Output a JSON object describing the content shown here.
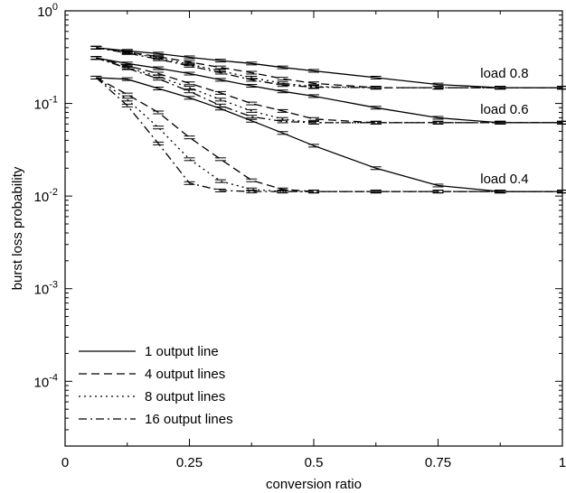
{
  "chart_data": {
    "type": "line",
    "xlabel": "conversion ratio",
    "ylabel": "burst loss probability",
    "xlim": [
      0,
      1
    ],
    "ylim": [
      2e-05,
      1
    ],
    "yscale": "log",
    "grid": false,
    "legend_position": "bottom-left",
    "x_ticks": [
      {
        "value": 0,
        "label": "0"
      },
      {
        "value": 0.25,
        "label": "0.25"
      },
      {
        "value": 0.5,
        "label": "0.5"
      },
      {
        "value": 0.75,
        "label": "0.75"
      },
      {
        "value": 1,
        "label": "1"
      }
    ],
    "y_ticks": [
      {
        "value": 1,
        "base": "10",
        "exp": "0"
      },
      {
        "value": 0.1,
        "base": "10",
        "exp": "-1"
      },
      {
        "value": 0.01,
        "base": "10",
        "exp": "-2"
      },
      {
        "value": 0.001,
        "base": "10",
        "exp": "-3"
      },
      {
        "value": 0.0001,
        "base": "10",
        "exp": "-4"
      }
    ],
    "annotations": [
      {
        "text": "load 0.8",
        "x": 0.835,
        "y": 0.19
      },
      {
        "text": "load 0.6",
        "x": 0.835,
        "y": 0.077
      },
      {
        "text": "load 0.4",
        "x": 0.835,
        "y": 0.0138
      }
    ],
    "line_styles": [
      {
        "name": "1 output line",
        "dash": ""
      },
      {
        "name": "4 output lines",
        "dash": "9,5"
      },
      {
        "name": "8 output lines",
        "dash": "2,4"
      },
      {
        "name": "16 output lines",
        "dash": "9,4,2,4"
      }
    ],
    "series": [
      {
        "name": "1 output line",
        "load": "load 0.8",
        "x": [
          0.0625,
          0.125,
          0.1875,
          0.25,
          0.3125,
          0.375,
          0.4375,
          0.5,
          0.625,
          0.75,
          0.875,
          1
        ],
        "y": [
          0.4,
          0.37,
          0.345,
          0.315,
          0.29,
          0.27,
          0.245,
          0.225,
          0.19,
          0.16,
          0.148,
          0.148
        ]
      },
      {
        "name": "4 output lines",
        "load": "load 0.8",
        "x": [
          0.0625,
          0.125,
          0.1875,
          0.25,
          0.3125,
          0.375,
          0.4375,
          0.5,
          0.625,
          0.75,
          0.875,
          1
        ],
        "y": [
          0.4,
          0.36,
          0.32,
          0.28,
          0.245,
          0.215,
          0.185,
          0.165,
          0.148,
          0.148,
          0.148,
          0.148
        ]
      },
      {
        "name": "8 output lines",
        "load": "load 0.8",
        "x": [
          0.0625,
          0.125,
          0.1875,
          0.25,
          0.3125,
          0.375,
          0.4375,
          0.5,
          0.625,
          0.75,
          0.875,
          1
        ],
        "y": [
          0.4,
          0.355,
          0.31,
          0.265,
          0.225,
          0.19,
          0.165,
          0.152,
          0.148,
          0.148,
          0.148,
          0.148
        ]
      },
      {
        "name": "16 output lines",
        "load": "load 0.8",
        "x": [
          0.0625,
          0.125,
          0.1875,
          0.25,
          0.3125,
          0.375,
          0.4375,
          0.5,
          0.625,
          0.75,
          0.875,
          1
        ],
        "y": [
          0.4,
          0.35,
          0.3,
          0.255,
          0.215,
          0.18,
          0.158,
          0.15,
          0.148,
          0.148,
          0.148,
          0.148
        ]
      },
      {
        "name": "1 output line",
        "load": "load 0.6",
        "x": [
          0.0625,
          0.125,
          0.1875,
          0.25,
          0.3125,
          0.375,
          0.4375,
          0.5,
          0.625,
          0.75,
          0.875,
          1
        ],
        "y": [
          0.31,
          0.27,
          0.24,
          0.21,
          0.18,
          0.155,
          0.135,
          0.12,
          0.09,
          0.07,
          0.062,
          0.062
        ]
      },
      {
        "name": "4 output lines",
        "load": "load 0.6",
        "x": [
          0.0625,
          0.125,
          0.1875,
          0.25,
          0.3125,
          0.375,
          0.4375,
          0.5,
          0.625,
          0.75,
          0.875,
          1
        ],
        "y": [
          0.31,
          0.255,
          0.21,
          0.165,
          0.13,
          0.1,
          0.083,
          0.068,
          0.062,
          0.062,
          0.062,
          0.062
        ]
      },
      {
        "name": "8 output lines",
        "load": "load 0.6",
        "x": [
          0.0625,
          0.125,
          0.1875,
          0.25,
          0.3125,
          0.375,
          0.4375,
          0.5,
          0.625,
          0.75,
          0.875,
          1
        ],
        "y": [
          0.31,
          0.245,
          0.195,
          0.148,
          0.11,
          0.083,
          0.068,
          0.062,
          0.062,
          0.062,
          0.062,
          0.062
        ]
      },
      {
        "name": "16 output lines",
        "load": "load 0.6",
        "x": [
          0.0625,
          0.125,
          0.1875,
          0.25,
          0.3125,
          0.375,
          0.4375,
          0.5,
          0.625,
          0.75,
          0.875,
          1
        ],
        "y": [
          0.31,
          0.24,
          0.185,
          0.135,
          0.095,
          0.072,
          0.064,
          0.062,
          0.062,
          0.062,
          0.062,
          0.062
        ]
      },
      {
        "name": "1 output line",
        "load": "load 0.4",
        "x": [
          0.0625,
          0.125,
          0.1875,
          0.25,
          0.3125,
          0.375,
          0.4375,
          0.5,
          0.625,
          0.75,
          0.875,
          1
        ],
        "y": [
          0.19,
          0.183,
          0.145,
          0.115,
          0.088,
          0.065,
          0.048,
          0.035,
          0.02,
          0.013,
          0.0112,
          0.0112
        ]
      },
      {
        "name": "4 output lines",
        "load": "load 0.4",
        "x": [
          0.0625,
          0.125,
          0.1875,
          0.25,
          0.3125,
          0.375,
          0.4375,
          0.5,
          0.625,
          0.75,
          0.875,
          1
        ],
        "y": [
          0.19,
          0.125,
          0.08,
          0.043,
          0.025,
          0.0148,
          0.0118,
          0.0112,
          0.0112,
          0.0112,
          0.0112,
          0.0112
        ]
      },
      {
        "name": "8 output lines",
        "load": "load 0.4",
        "x": [
          0.0625,
          0.125,
          0.1875,
          0.25,
          0.3125,
          0.375,
          0.4375,
          0.5,
          0.625,
          0.75,
          0.875,
          1
        ],
        "y": [
          0.19,
          0.11,
          0.055,
          0.025,
          0.0145,
          0.0118,
          0.0112,
          0.0112,
          0.0112,
          0.0112,
          0.0112,
          0.0112
        ]
      },
      {
        "name": "16 output lines",
        "load": "load 0.4",
        "x": [
          0.0625,
          0.125,
          0.1875,
          0.25,
          0.3125,
          0.375,
          0.4375,
          0.5,
          0.625,
          0.75,
          0.875,
          1
        ],
        "y": [
          0.19,
          0.095,
          0.037,
          0.0138,
          0.0115,
          0.0112,
          0.0112,
          0.0112,
          0.0112,
          0.0112,
          0.0112,
          0.0112
        ]
      }
    ]
  }
}
